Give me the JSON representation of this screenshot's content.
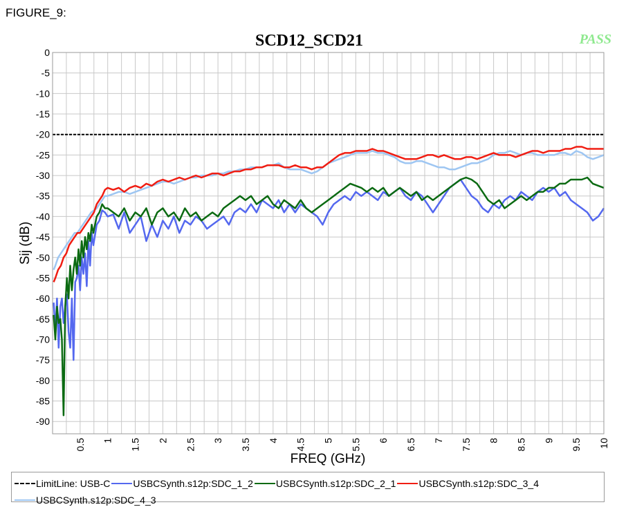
{
  "figure_label": "FIGURE_9:",
  "status_text": "PASS",
  "colors": {
    "limit": "#000000",
    "sdc12": "#5468ef",
    "sdc21": "#0b6a12",
    "sdc34": "#f01d12",
    "sdc43": "#9ec6f2",
    "pass": "#8fe98f",
    "grid": "#c8c8c8"
  },
  "chart_data": {
    "type": "line",
    "title": "SCD12_SCD21",
    "xlabel": "FREQ (GHz)",
    "ylabel": "Sij  (dB)",
    "xlim": [
      0,
      10
    ],
    "ylim": [
      -93,
      0
    ],
    "grid": true,
    "legend_placement": "bottom",
    "x_ticks": [
      0.5,
      1,
      1.5,
      2,
      2.5,
      3,
      3.5,
      4,
      4.5,
      5,
      5.5,
      6,
      6.5,
      7,
      7.5,
      8,
      8.5,
      9,
      9.5,
      10
    ],
    "x_tick_labels": [
      "0.5",
      "1",
      "1.5",
      "2",
      "2.5",
      "3",
      "3.5",
      "4",
      "4.5",
      "5",
      "5.5",
      "6",
      "6.5",
      "7",
      "7.5",
      "8",
      "8.5",
      "9",
      "9.5",
      "10"
    ],
    "y_ticks": [
      0,
      -5,
      -10,
      -15,
      -20,
      -25,
      -30,
      -35,
      -40,
      -45,
      -50,
      -55,
      -60,
      -65,
      -70,
      -75,
      -80,
      -85,
      -90
    ],
    "y_tick_labels": [
      "0",
      "-5",
      "-10",
      "-15",
      "-20",
      "-25",
      "-30",
      "-35",
      "-40",
      "-45",
      "-50",
      "-55",
      "-60",
      "-65",
      "-70",
      "-75",
      "-80",
      "-85",
      "-90"
    ],
    "series": [
      {
        "name": "LimitLine: USB-C",
        "color_key": "limit",
        "dash": true,
        "x": [
          0,
          10
        ],
        "y": [
          -20,
          -20
        ]
      },
      {
        "name": "USBCSynth.s12p:SDC_1_2",
        "color_key": "sdc12",
        "x": [
          0.02,
          0.05,
          0.08,
          0.11,
          0.14,
          0.17,
          0.2,
          0.23,
          0.26,
          0.29,
          0.32,
          0.35,
          0.38,
          0.41,
          0.44,
          0.47,
          0.5,
          0.53,
          0.56,
          0.59,
          0.62,
          0.65,
          0.68,
          0.71,
          0.74,
          0.8,
          0.85,
          0.9,
          0.95,
          1.0,
          1.1,
          1.2,
          1.3,
          1.4,
          1.5,
          1.6,
          1.7,
          1.8,
          1.9,
          2.0,
          2.1,
          2.2,
          2.3,
          2.4,
          2.5,
          2.6,
          2.7,
          2.8,
          2.9,
          3.0,
          3.1,
          3.2,
          3.3,
          3.4,
          3.5,
          3.6,
          3.7,
          3.8,
          3.9,
          4.0,
          4.1,
          4.2,
          4.3,
          4.4,
          4.5,
          4.6,
          4.7,
          4.8,
          4.9,
          5.0,
          5.1,
          5.2,
          5.3,
          5.4,
          5.5,
          5.6,
          5.7,
          5.8,
          5.9,
          6.0,
          6.1,
          6.2,
          6.3,
          6.4,
          6.5,
          6.6,
          6.7,
          6.8,
          6.9,
          7.0,
          7.1,
          7.2,
          7.3,
          7.4,
          7.5,
          7.6,
          7.7,
          7.8,
          7.9,
          8.0,
          8.1,
          8.2,
          8.3,
          8.4,
          8.5,
          8.6,
          8.7,
          8.8,
          8.9,
          9.0,
          9.1,
          9.2,
          9.3,
          9.4,
          9.5,
          9.6,
          9.7,
          9.8,
          9.9,
          10.0
        ],
        "y": [
          -61,
          -68,
          -60,
          -72,
          -62,
          -60,
          -66,
          -62,
          -59,
          -68,
          -72,
          -60,
          -75,
          -56,
          -55,
          -52,
          -58,
          -50,
          -54,
          -49,
          -57,
          -46,
          -52,
          -44,
          -47,
          -42,
          -41,
          -38.5,
          -39,
          -40,
          -39.5,
          -43,
          -39,
          -44,
          -42,
          -40,
          -46,
          -42,
          -45,
          -41,
          -43,
          -40,
          -44,
          -41,
          -42,
          -40,
          -41,
          -43,
          -42,
          -41,
          -40,
          -42,
          -39,
          -38,
          -39,
          -37,
          -39,
          -36,
          -37,
          -38,
          -36,
          -39,
          -37,
          -39,
          -37,
          -38,
          -39,
          -40,
          -42,
          -39,
          -37,
          -36,
          -35,
          -36,
          -34,
          -35,
          -34,
          -35,
          -36,
          -34,
          -35,
          -34,
          -33,
          -35,
          -36,
          -34,
          -35,
          -37,
          -39,
          -37,
          -35,
          -33,
          -32,
          -31,
          -33,
          -35,
          -36,
          -38,
          -39,
          -37,
          -38,
          -36,
          -35,
          -36,
          -34,
          -35,
          -36,
          -34,
          -33,
          -34,
          -33,
          -35,
          -34,
          -36,
          -37,
          -38,
          -39,
          -41,
          -40,
          -38
        ]
      },
      {
        "name": "USBCSynth.s12p:SDC_2_1",
        "color_key": "sdc21",
        "x": [
          0.02,
          0.05,
          0.08,
          0.11,
          0.14,
          0.17,
          0.2,
          0.23,
          0.26,
          0.29,
          0.32,
          0.35,
          0.38,
          0.41,
          0.44,
          0.47,
          0.5,
          0.53,
          0.56,
          0.59,
          0.62,
          0.65,
          0.68,
          0.71,
          0.74,
          0.8,
          0.85,
          0.9,
          0.95,
          1.0,
          1.1,
          1.2,
          1.3,
          1.4,
          1.5,
          1.6,
          1.7,
          1.8,
          1.9,
          2.0,
          2.1,
          2.2,
          2.3,
          2.4,
          2.5,
          2.6,
          2.7,
          2.8,
          2.9,
          3.0,
          3.1,
          3.2,
          3.3,
          3.4,
          3.5,
          3.6,
          3.7,
          3.8,
          3.9,
          4.0,
          4.1,
          4.2,
          4.3,
          4.4,
          4.5,
          4.6,
          4.7,
          4.8,
          4.9,
          5.0,
          5.1,
          5.2,
          5.3,
          5.4,
          5.5,
          5.6,
          5.7,
          5.8,
          5.9,
          6.0,
          6.1,
          6.2,
          6.3,
          6.4,
          6.5,
          6.6,
          6.7,
          6.8,
          6.9,
          7.0,
          7.1,
          7.2,
          7.3,
          7.4,
          7.5,
          7.6,
          7.7,
          7.8,
          7.9,
          8.0,
          8.1,
          8.2,
          8.3,
          8.4,
          8.5,
          8.6,
          8.7,
          8.8,
          8.9,
          9.0,
          9.1,
          9.2,
          9.3,
          9.4,
          9.5,
          9.6,
          9.7,
          9.8,
          9.9,
          10.0
        ],
        "y": [
          -64,
          -70,
          -62,
          -66,
          -65,
          -70,
          -88.5,
          -62,
          -55,
          -60,
          -52,
          -58,
          -53,
          -50,
          -54,
          -48,
          -52,
          -46,
          -50,
          -45,
          -48,
          -44,
          -46,
          -42,
          -44,
          -40,
          -39,
          -37,
          -38,
          -38,
          -39,
          -40,
          -38,
          -41,
          -39,
          -40,
          -38,
          -42,
          -39,
          -38,
          -40,
          -39,
          -41,
          -38,
          -40,
          -39,
          -41,
          -40,
          -39,
          -40,
          -38,
          -37,
          -36,
          -35,
          -36,
          -35,
          -37,
          -36,
          -35,
          -37,
          -38,
          -36,
          -37,
          -38,
          -36,
          -38,
          -39,
          -38,
          -37,
          -36,
          -35,
          -34,
          -33,
          -32,
          -32.5,
          -33,
          -34,
          -33,
          -34,
          -33,
          -35,
          -34,
          -33,
          -34,
          -35,
          -34,
          -36,
          -35,
          -36,
          -35,
          -34,
          -33,
          -32,
          -31,
          -30.5,
          -31,
          -32,
          -34,
          -36,
          -37,
          -36,
          -38,
          -37,
          -36,
          -35,
          -36,
          -35,
          -34,
          -34,
          -33,
          -33,
          -32,
          -32,
          -31,
          -31,
          -31,
          -30.5,
          -32,
          -32.5,
          -33
        ]
      },
      {
        "name": "USBCSynth.s12p:SDC_3_4",
        "color_key": "sdc34",
        "x": [
          0.02,
          0.05,
          0.1,
          0.15,
          0.2,
          0.25,
          0.3,
          0.35,
          0.4,
          0.45,
          0.5,
          0.55,
          0.6,
          0.65,
          0.7,
          0.75,
          0.8,
          0.85,
          0.9,
          0.95,
          1.0,
          1.1,
          1.2,
          1.3,
          1.4,
          1.5,
          1.6,
          1.7,
          1.8,
          1.9,
          2.0,
          2.1,
          2.2,
          2.3,
          2.4,
          2.5,
          2.6,
          2.7,
          2.8,
          2.9,
          3.0,
          3.1,
          3.2,
          3.3,
          3.4,
          3.5,
          3.6,
          3.7,
          3.8,
          3.9,
          4.0,
          4.1,
          4.2,
          4.3,
          4.4,
          4.5,
          4.6,
          4.7,
          4.8,
          4.9,
          5.0,
          5.1,
          5.2,
          5.3,
          5.4,
          5.5,
          5.6,
          5.7,
          5.8,
          5.9,
          6.0,
          6.1,
          6.2,
          6.3,
          6.4,
          6.5,
          6.6,
          6.7,
          6.8,
          6.9,
          7.0,
          7.1,
          7.2,
          7.3,
          7.4,
          7.5,
          7.6,
          7.7,
          7.8,
          7.9,
          8.0,
          8.1,
          8.2,
          8.3,
          8.4,
          8.5,
          8.6,
          8.7,
          8.8,
          8.9,
          9.0,
          9.1,
          9.2,
          9.3,
          9.4,
          9.5,
          9.6,
          9.7,
          9.8,
          9.9,
          10.0
        ],
        "y": [
          -56,
          -55,
          -53,
          -52,
          -50,
          -49,
          -47,
          -46,
          -45,
          -44,
          -44,
          -43,
          -42,
          -41,
          -40,
          -39,
          -37,
          -36,
          -35,
          -33.5,
          -33,
          -33.5,
          -33,
          -34,
          -33,
          -32.5,
          -33,
          -32,
          -32.5,
          -31.5,
          -31,
          -31.5,
          -31,
          -30.5,
          -31,
          -30.5,
          -30,
          -30.5,
          -30,
          -29.5,
          -29.5,
          -30,
          -29.5,
          -29,
          -29,
          -28.5,
          -28.5,
          -28,
          -28,
          -27.5,
          -27.5,
          -27.5,
          -28,
          -28,
          -27.5,
          -28,
          -28,
          -28.5,
          -28,
          -28,
          -27,
          -26,
          -25,
          -24.5,
          -24.5,
          -24,
          -24,
          -24,
          -23.5,
          -24,
          -24,
          -24.5,
          -25,
          -25.5,
          -26,
          -26,
          -26,
          -25.5,
          -25,
          -25,
          -25.5,
          -25,
          -25.5,
          -26,
          -26,
          -25.5,
          -25.5,
          -26,
          -25.5,
          -25,
          -24.5,
          -25,
          -25,
          -25,
          -25.5,
          -25,
          -24.5,
          -24,
          -24,
          -24.5,
          -24,
          -24,
          -24,
          -23.5,
          -23.5,
          -23,
          -23,
          -23.5,
          -23.5,
          -23.5,
          -23.5
        ]
      },
      {
        "name": "USBCSynth.s12p:SDC_4_3",
        "color_key": "sdc43",
        "x": [
          0.02,
          0.05,
          0.1,
          0.15,
          0.2,
          0.25,
          0.3,
          0.35,
          0.4,
          0.45,
          0.5,
          0.55,
          0.6,
          0.65,
          0.7,
          0.75,
          0.8,
          0.85,
          0.9,
          0.95,
          1.0,
          1.1,
          1.2,
          1.3,
          1.4,
          1.5,
          1.6,
          1.7,
          1.8,
          1.9,
          2.0,
          2.1,
          2.2,
          2.3,
          2.4,
          2.5,
          2.6,
          2.7,
          2.8,
          2.9,
          3.0,
          3.1,
          3.2,
          3.3,
          3.4,
          3.5,
          3.6,
          3.7,
          3.8,
          3.9,
          4.0,
          4.1,
          4.2,
          4.3,
          4.4,
          4.5,
          4.6,
          4.7,
          4.8,
          4.9,
          5.0,
          5.1,
          5.2,
          5.3,
          5.4,
          5.5,
          5.6,
          5.7,
          5.8,
          5.9,
          6.0,
          6.1,
          6.2,
          6.3,
          6.4,
          6.5,
          6.6,
          6.7,
          6.8,
          6.9,
          7.0,
          7.1,
          7.2,
          7.3,
          7.4,
          7.5,
          7.6,
          7.7,
          7.8,
          7.9,
          8.0,
          8.1,
          8.2,
          8.3,
          8.4,
          8.5,
          8.6,
          8.7,
          8.8,
          8.9,
          9.0,
          9.1,
          9.2,
          9.3,
          9.4,
          9.5,
          9.6,
          9.7,
          9.8,
          9.9,
          10.0
        ],
        "y": [
          -53,
          -52,
          -50,
          -49,
          -48,
          -47,
          -46,
          -45,
          -44,
          -44,
          -43,
          -42,
          -41,
          -40,
          -39,
          -38.5,
          -38,
          -37,
          -36,
          -35,
          -35,
          -34.5,
          -34,
          -34,
          -34.5,
          -34,
          -33.5,
          -33,
          -32.5,
          -32,
          -31.5,
          -31.5,
          -32,
          -31.5,
          -31,
          -30.5,
          -30.5,
          -30,
          -30,
          -30,
          -29.5,
          -29.5,
          -29,
          -29,
          -28.5,
          -28.5,
          -28,
          -28,
          -28,
          -27.5,
          -27.5,
          -27,
          -28,
          -28.5,
          -28.5,
          -28.5,
          -29,
          -29.5,
          -29,
          -28,
          -27,
          -26.5,
          -26,
          -25.5,
          -25,
          -24.5,
          -24.5,
          -24.5,
          -24,
          -24.5,
          -24.5,
          -25,
          -25.5,
          -26.5,
          -27,
          -27,
          -26.5,
          -26.5,
          -27,
          -27.5,
          -28,
          -28,
          -28.5,
          -28.5,
          -28,
          -27.5,
          -27,
          -27,
          -26.5,
          -26,
          -25,
          -24.5,
          -24.5,
          -24,
          -24.5,
          -25,
          -24.5,
          -24.5,
          -25,
          -25,
          -25,
          -25,
          -24.5,
          -24.5,
          -25,
          -24,
          -24.5,
          -25.5,
          -26,
          -25.5,
          -25
        ]
      }
    ]
  }
}
